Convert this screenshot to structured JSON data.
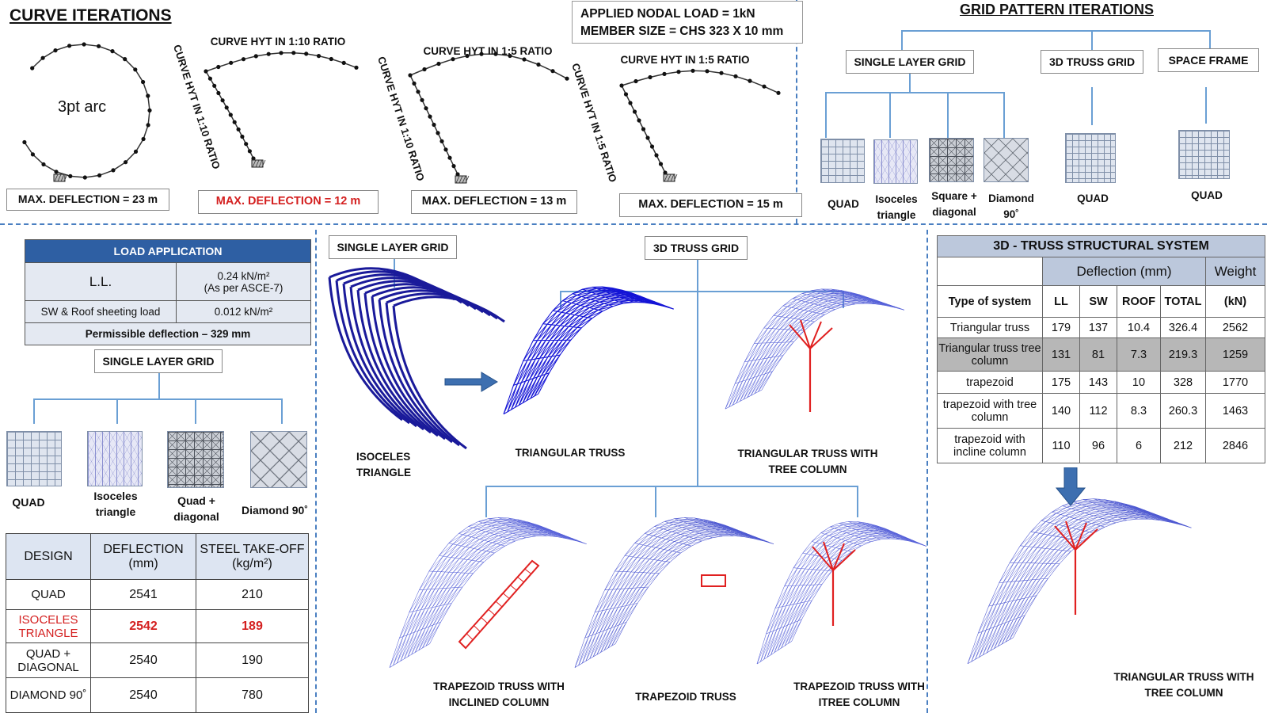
{
  "curve_section": {
    "title": "CURVE ITERATIONS",
    "load_box": {
      "line1": "APPLIED NODAL LOAD = 1kN",
      "line2": "MEMBER SIZE = CHS 323 X 10 mm"
    },
    "arc_label": "3pt arc",
    "curves": [
      {
        "top_label": "",
        "side_label": "",
        "deflection": "MAX. DEFLECTION = 23 m",
        "highlight": false
      },
      {
        "top_label": "CURVE HYT IN 1:10 RATIO",
        "side_label": "CURVE HYT IN 1:10 RATIO",
        "deflection": "MAX. DEFLECTION = 12 m",
        "highlight": true
      },
      {
        "top_label": "CURVE HYT IN 1:5 RATIO",
        "side_label": "CURVE HYT IN 1:10 RATIO",
        "deflection": "MAX. DEFLECTION = 13 m",
        "highlight": false
      },
      {
        "top_label": "CURVE HYT IN 1:5 RATIO",
        "side_label": "CURVE HYT IN 1:5 RATIO",
        "deflection": "MAX. DEFLECTION = 15 m",
        "highlight": false
      }
    ]
  },
  "grid_pattern": {
    "title": "GRID PATTERN ITERATIONS",
    "categories": [
      "SINGLE LAYER GRID",
      "3D TRUSS GRID",
      "SPACE FRAME"
    ],
    "single_layer_tiles": [
      {
        "label": "QUAD",
        "pattern": "quad"
      },
      {
        "label": "Isoceles triangle",
        "pattern": "isosceles"
      },
      {
        "label": "Square + diagonal",
        "pattern": "square-diagonal"
      },
      {
        "label": "Diamond 90˚",
        "pattern": "diamond"
      }
    ],
    "truss_tile": {
      "label": "QUAD",
      "pattern": "quad"
    },
    "space_frame_tile": {
      "label": "QUAD",
      "pattern": "quad"
    }
  },
  "load_application": {
    "header": "LOAD APPLICATION",
    "ll_label": "L.L.",
    "ll_value": "0.24 kN/m²",
    "ll_note": "(As per ASCE-7)",
    "sw_label": "SW & Roof sheeting load",
    "sw_value": "0.012 kN/m²",
    "permissible": "Permissible deflection – 329 mm"
  },
  "single_layer_section": {
    "title": "SINGLE LAYER GRID",
    "tiles": [
      {
        "label": "QUAD",
        "pattern": "quad"
      },
      {
        "label": "Isoceles triangle",
        "pattern": "isosceles"
      },
      {
        "label": "Quad + diagonal",
        "pattern": "square-diagonal"
      },
      {
        "label": "Diamond 90˚",
        "pattern": "diamond"
      }
    ]
  },
  "design_table": {
    "headers": [
      "DESIGN",
      "DEFLECTION (mm)",
      "STEEL TAKE-OFF (kg/m²)"
    ],
    "rows": [
      {
        "design": "QUAD",
        "deflection": "2541",
        "steel": "210",
        "highlight": false
      },
      {
        "design": "ISOCELES TRIANGLE",
        "deflection": "2542",
        "steel": "189",
        "highlight": true
      },
      {
        "design": "QUAD + DIAGONAL",
        "deflection": "2540",
        "steel": "190",
        "highlight": false
      },
      {
        "design": "DIAMOND 90˚",
        "deflection": "2540",
        "steel": "780",
        "highlight": false
      }
    ]
  },
  "middle_section": {
    "single_layer_title": "SINGLE LAYER GRID",
    "truss_title": "3D TRUSS GRID",
    "captions": {
      "isoceles": "ISOCELES TRIANGLE",
      "triangular": "TRIANGULAR TRUSS",
      "triangular_tree": "TRIANGULAR TRUSS WITH TREE COLUMN",
      "trap_inclined": "TRAPEZOID TRUSS WITH INCLINED COLUMN",
      "trap": "TRAPEZOID TRUSS",
      "trap_tree": "TRAPEZOID TRUSS WITH ITREE COLUMN"
    }
  },
  "truss_table": {
    "title": "3D - TRUSS STRUCTURAL SYSTEM",
    "group_header": "Deflection (mm)",
    "weight_header": "Weight",
    "col_type": "Type of system",
    "col_ll": "LL",
    "col_sw": "SW",
    "col_roof": "ROOF",
    "col_total": "TOTAL",
    "col_weight": "(kN)",
    "rows": [
      {
        "type": "Triangular truss",
        "ll": "179",
        "sw": "137",
        "roof": "10.4",
        "total": "326.4",
        "weight": "2562",
        "shaded": false
      },
      {
        "type": "Triangular truss tree column",
        "ll": "131",
        "sw": "81",
        "roof": "7.3",
        "total": "219.3",
        "weight": "1259",
        "shaded": true
      },
      {
        "type": "trapezoid",
        "ll": "175",
        "sw": "143",
        "roof": "10",
        "total": "328",
        "weight": "1770",
        "shaded": false
      },
      {
        "type": "trapezoid with tree column",
        "ll": "140",
        "sw": "112",
        "roof": "8.3",
        "total": "260.3",
        "weight": "1463",
        "shaded": false
      },
      {
        "type": "trapezoid with incline column",
        "ll": "110",
        "sw": "96",
        "roof": "6",
        "total": "212",
        "weight": "2846",
        "shaded": false
      }
    ]
  },
  "result_caption": "TRIANGULAR TRUSS WITH TREE COLUMN",
  "colors": {
    "accent": "#2e5fa3",
    "highlight_red": "#d42020",
    "table_header": "#2e5fa3",
    "table_shade": "#bcc8dc",
    "structure_blue": "#1a1acc",
    "column_red": "#e02020"
  }
}
